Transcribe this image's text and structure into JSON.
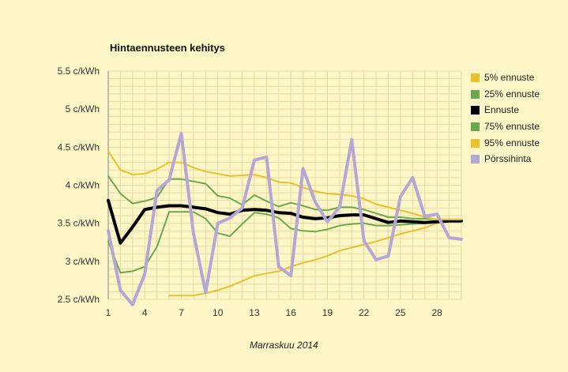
{
  "chart_data": {
    "type": "line",
    "title": "Hintaennusteen kehitys",
    "xlabel": "Marraskuu 2014",
    "ylabel": "",
    "xlim": [
      1,
      30
    ],
    "ylim": [
      2.5,
      5.5
    ],
    "x_ticks": [
      "1",
      "4",
      "7",
      "10",
      "13",
      "16",
      "19",
      "22",
      "25",
      "28"
    ],
    "y_ticks": [
      "2.5 c/kWh",
      "3 c/kWh",
      "3.5 c/kWh",
      "4 c/kWh",
      "4.5 c/kWh",
      "5 c/kWh",
      "5.5 c/kWh"
    ],
    "grid": true,
    "legend_position": "right",
    "x": [
      1,
      2,
      3,
      4,
      5,
      6,
      7,
      8,
      9,
      10,
      11,
      12,
      13,
      14,
      15,
      16,
      17,
      18,
      19,
      20,
      21,
      22,
      23,
      24,
      25,
      26,
      27,
      28,
      29,
      30
    ],
    "series": [
      {
        "name": "5% ennuste",
        "color": "#e8c12b",
        "values": [
          null,
          null,
          null,
          null,
          null,
          2.55,
          2.55,
          2.55,
          2.58,
          2.62,
          2.67,
          2.74,
          2.81,
          2.84,
          2.87,
          2.93,
          2.98,
          3.02,
          3.07,
          3.14,
          3.18,
          3.22,
          3.26,
          3.31,
          3.36,
          3.4,
          3.44,
          3.5,
          3.53,
          3.53
        ]
      },
      {
        "name": "25% ennuste",
        "color": "#6aa84f",
        "values": [
          3.26,
          2.85,
          2.87,
          2.93,
          3.19,
          3.65,
          3.65,
          3.65,
          3.56,
          3.37,
          3.33,
          3.49,
          3.64,
          3.62,
          3.57,
          3.43,
          3.4,
          3.39,
          3.42,
          3.47,
          3.49,
          3.5,
          3.47,
          3.47,
          3.48,
          3.49,
          3.5,
          3.51,
          3.53,
          3.53
        ]
      },
      {
        "name": "Ennuste",
        "color": "#000000",
        "values": [
          3.8,
          3.24,
          3.45,
          3.68,
          3.71,
          3.73,
          3.73,
          3.71,
          3.69,
          3.64,
          3.62,
          3.67,
          3.68,
          3.67,
          3.64,
          3.63,
          3.58,
          3.56,
          3.57,
          3.6,
          3.61,
          3.61,
          3.56,
          3.51,
          3.53,
          3.52,
          3.51,
          3.52,
          3.53,
          3.53
        ]
      },
      {
        "name": "75% ennuste",
        "color": "#6aa84f",
        "values": [
          4.12,
          3.89,
          3.76,
          3.79,
          3.84,
          4.08,
          4.08,
          4.05,
          4.02,
          3.86,
          3.83,
          3.74,
          3.87,
          3.79,
          3.72,
          3.77,
          3.73,
          3.68,
          3.67,
          3.71,
          3.71,
          3.68,
          3.63,
          3.58,
          3.58,
          3.56,
          3.56,
          3.55,
          3.55,
          3.55
        ]
      },
      {
        "name": "95% ennuste",
        "color": "#e8c12b",
        "values": [
          4.45,
          4.2,
          4.14,
          4.15,
          4.21,
          4.3,
          4.3,
          4.23,
          4.18,
          4.15,
          4.12,
          4.13,
          4.14,
          4.1,
          4.04,
          4.03,
          3.97,
          3.92,
          3.89,
          3.88,
          3.86,
          3.82,
          3.75,
          3.71,
          3.67,
          3.63,
          3.58,
          3.55,
          3.55,
          3.55
        ]
      },
      {
        "name": "Pörssihinta",
        "color": "#b4a7d6",
        "values": [
          3.4,
          2.62,
          2.43,
          2.83,
          3.93,
          4.07,
          4.68,
          3.37,
          2.59,
          3.5,
          3.57,
          3.7,
          4.33,
          4.37,
          2.93,
          2.81,
          4.22,
          3.78,
          3.52,
          3.71,
          4.6,
          3.27,
          3.02,
          3.07,
          3.85,
          4.1,
          3.59,
          3.62,
          3.31,
          3.29
        ]
      }
    ]
  }
}
